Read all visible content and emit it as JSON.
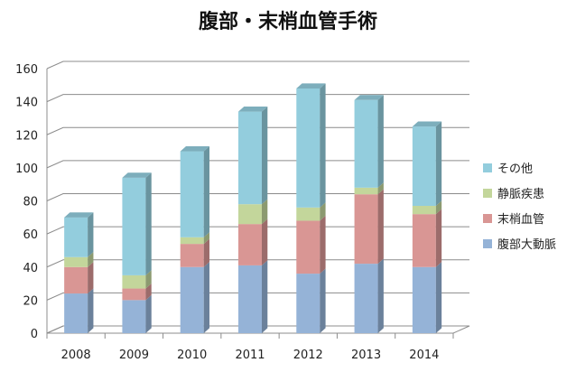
{
  "chart_data": {
    "type": "bar",
    "stacked": true,
    "three_d": true,
    "title": "腹部・末梢血管手術",
    "xlabel": "",
    "ylabel": "",
    "categories": [
      "2008",
      "2009",
      "2010",
      "2011",
      "2012",
      "2013",
      "2014"
    ],
    "ylim": [
      0,
      160
    ],
    "yticks": [
      "0",
      "20",
      "40",
      "60",
      "80",
      "100",
      "120",
      "140",
      "160"
    ],
    "grid": true,
    "legend_position": "right",
    "series": [
      {
        "name": "腹部大動脈",
        "color": "#95b3d7",
        "values": [
          24,
          20,
          40,
          41,
          36,
          42,
          40
        ]
      },
      {
        "name": "末梢血管",
        "color": "#d99694",
        "values": [
          16,
          7,
          14,
          25,
          32,
          42,
          32
        ]
      },
      {
        "name": "静脈疾患",
        "color": "#c3d69b",
        "values": [
          6,
          8,
          4,
          12,
          8,
          4,
          5
        ]
      },
      {
        "name": "その他",
        "color": "#93cddd",
        "values": [
          24,
          59,
          52,
          56,
          72,
          53,
          48
        ]
      }
    ]
  }
}
